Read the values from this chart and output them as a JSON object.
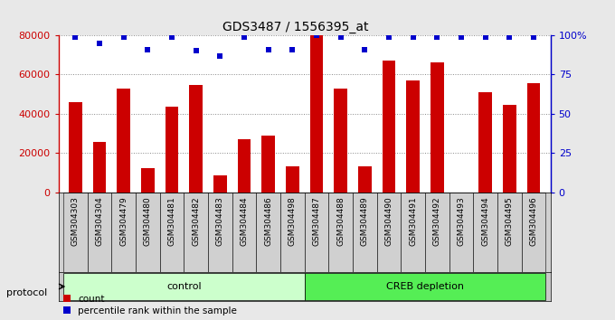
{
  "title": "GDS3487 / 1556395_at",
  "samples": [
    "GSM304303",
    "GSM304304",
    "GSM304479",
    "GSM304480",
    "GSM304481",
    "GSM304482",
    "GSM304483",
    "GSM304484",
    "GSM304486",
    "GSM304498",
    "GSM304487",
    "GSM304488",
    "GSM304489",
    "GSM304490",
    "GSM304491",
    "GSM304492",
    "GSM304493",
    "GSM304494",
    "GSM304495",
    "GSM304496"
  ],
  "counts": [
    46000,
    25500,
    53000,
    12500,
    43500,
    54500,
    8500,
    27000,
    29000,
    13000,
    80000,
    53000,
    13000,
    67000,
    57000,
    66000,
    0,
    51000,
    44500,
    55500
  ],
  "percentiles": [
    99,
    95,
    99,
    91,
    99,
    90,
    87,
    99,
    91,
    91,
    100,
    99,
    91,
    99,
    99,
    99,
    99,
    99,
    99,
    99
  ],
  "control_count": 10,
  "creb_count": 10,
  "bar_color": "#cc0000",
  "dot_color": "#0000cc",
  "left_axis_color": "#cc0000",
  "right_axis_color": "#0000cc",
  "ylim_left": [
    0,
    80000
  ],
  "yticks_left": [
    0,
    20000,
    40000,
    60000,
    80000
  ],
  "yticks_right": [
    0,
    25,
    50,
    75,
    100
  ],
  "ylabel_right_labels": [
    "0",
    "25",
    "50",
    "75",
    "100%"
  ],
  "control_label": "control",
  "creb_label": "CREB depletion",
  "protocol_label": "protocol",
  "legend_count_label": "count",
  "legend_pct_label": "percentile rank within the sample",
  "bg_color": "#e8e8e8",
  "plot_bg": "#ffffff",
  "control_bg": "#ccffcc",
  "creb_bg": "#55ee55",
  "xtick_bg": "#d0d0d0",
  "grid_color": "#888888",
  "bar_width": 0.55
}
